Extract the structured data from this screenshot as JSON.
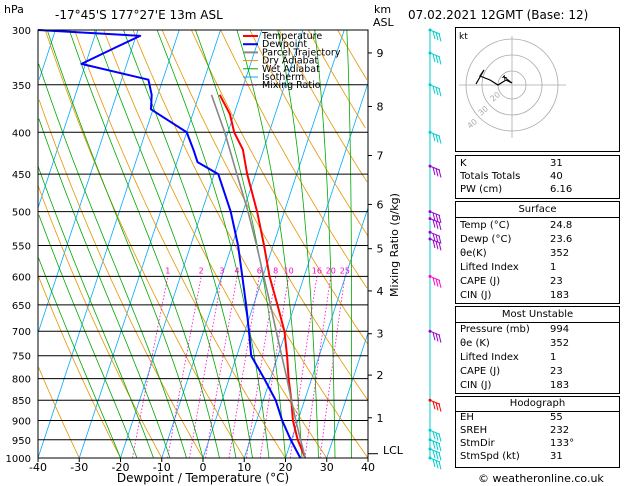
{
  "header": {
    "hpa_label": "hPa",
    "location": "-17°45'S  177°27'E  13m  ASL",
    "km_label": "km",
    "asl_label": "ASL",
    "datetime": "07.02.2021  12GMT  (Base: 12)"
  },
  "credit": "© weatheronline.co.uk",
  "colors": {
    "temperature": "#ff0000",
    "dewpoint": "#0000ff",
    "parcel": "#888888",
    "dry_adiabat": "#e69500",
    "wet_adiabat": "#00aa00",
    "isotherm": "#00aaff",
    "mixing_ratio": "#ff00cc",
    "wind": "#00cccc",
    "wind_purple": "#9900cc"
  },
  "chart_data": {
    "type": "line",
    "subtype": "skew-t log-p",
    "xlabel": "Dewpoint / Temperature (°C)",
    "ylabel_right": "Mixing Ratio (g/kg)",
    "xlim": [
      -40,
      40
    ],
    "ylim_hpa": [
      1000,
      300
    ],
    "x_ticks": [
      "-40",
      "-30",
      "-20",
      "-10",
      "0",
      "10",
      "20",
      "30",
      "40"
    ],
    "pressure_ticks": [
      "300",
      "350",
      "400",
      "450",
      "500",
      "550",
      "600",
      "650",
      "700",
      "750",
      "800",
      "850",
      "900",
      "950",
      "1000"
    ],
    "km_ticks": [
      {
        "label": "9",
        "p": 320
      },
      {
        "label": "8",
        "p": 372
      },
      {
        "label": "7",
        "p": 427
      },
      {
        "label": "6",
        "p": 490
      },
      {
        "label": "5",
        "p": 555
      },
      {
        "label": "4",
        "p": 625
      },
      {
        "label": "3",
        "p": 705
      },
      {
        "label": "2",
        "p": 792
      },
      {
        "label": "1",
        "p": 893
      }
    ],
    "lcl_label": "LCL",
    "lcl_p": 988,
    "mixing_ratio_labels": [
      "1",
      "2",
      "3",
      "4",
      "6",
      "8",
      "10",
      "16",
      "20",
      "25"
    ],
    "mixing_ratio_values": [
      1,
      2,
      3,
      4,
      6,
      8,
      10,
      16,
      20,
      25
    ],
    "legend": [
      "Temperature",
      "Dewpoint",
      "Parcel Trajectory",
      "Dry Adiabat",
      "Wet Adiabat",
      "Isotherm",
      "Mixing Ratio"
    ],
    "series": [
      {
        "name": "Temperature",
        "points": [
          [
            1000,
            24.8
          ],
          [
            950,
            21.5
          ],
          [
            900,
            18.8
          ],
          [
            850,
            16.8
          ],
          [
            800,
            14.4
          ],
          [
            750,
            12.2
          ],
          [
            700,
            9.6
          ],
          [
            650,
            5.8
          ],
          [
            600,
            1.6
          ],
          [
            550,
            -2.2
          ],
          [
            500,
            -6.6
          ],
          [
            450,
            -12.0
          ],
          [
            420,
            -15.0
          ],
          [
            400,
            -18.5
          ],
          [
            380,
            -21.0
          ],
          [
            360,
            -25.0
          ]
        ]
      },
      {
        "name": "Dewpoint",
        "points": [
          [
            1000,
            23.6
          ],
          [
            950,
            19.8
          ],
          [
            900,
            16.2
          ],
          [
            850,
            13.0
          ],
          [
            800,
            8.5
          ],
          [
            750,
            3.5
          ],
          [
            700,
            1.0
          ],
          [
            650,
            -1.8
          ],
          [
            600,
            -5.0
          ],
          [
            550,
            -8.5
          ],
          [
            500,
            -13.0
          ],
          [
            450,
            -19.0
          ],
          [
            435,
            -25.0
          ],
          [
            420,
            -27.0
          ],
          [
            400,
            -30.0
          ],
          [
            375,
            -40.5
          ],
          [
            360,
            -41.5
          ],
          [
            345,
            -43.5
          ],
          [
            330,
            -61.0
          ],
          [
            315,
            -54.0
          ],
          [
            305,
            -49.0
          ],
          [
            300,
            -77.0
          ]
        ]
      },
      {
        "name": "Parcel Trajectory",
        "points": [
          [
            1000,
            24.8
          ],
          [
            950,
            22.2
          ],
          [
            900,
            19.5
          ],
          [
            850,
            16.8
          ],
          [
            800,
            14.0
          ],
          [
            750,
            10.9
          ],
          [
            700,
            7.6
          ],
          [
            650,
            4.1
          ],
          [
            600,
            0.2
          ],
          [
            550,
            -4.0
          ],
          [
            500,
            -8.8
          ],
          [
            450,
            -14.5
          ],
          [
            400,
            -20.8
          ],
          [
            360,
            -27.0
          ]
        ]
      }
    ],
    "wind_barbs_p": [
      1000,
      975,
      950,
      925,
      850,
      700,
      600,
      540,
      530,
      510,
      500,
      440,
      400,
      350,
      320,
      300
    ]
  },
  "indices": {
    "rows": [
      {
        "label": "K",
        "value": "31"
      },
      {
        "label": "Totals Totals",
        "value": "40"
      },
      {
        "label": "PW (cm)",
        "value": "6.16"
      }
    ]
  },
  "surface": {
    "title": "Surface",
    "rows": [
      {
        "label": "Temp (°C)",
        "value": "24.8"
      },
      {
        "label": "Dewp (°C)",
        "value": "23.6"
      },
      {
        "label": "θe(K)",
        "value": "352"
      },
      {
        "label": "Lifted Index",
        "value": "1"
      },
      {
        "label": "CAPE (J)",
        "value": "23"
      },
      {
        "label": "CIN (J)",
        "value": "183"
      }
    ]
  },
  "most_unstable": {
    "title": "Most Unstable",
    "rows": [
      {
        "label": "Pressure (mb)",
        "value": "994"
      },
      {
        "label": "θe (K)",
        "value": "352"
      },
      {
        "label": "Lifted Index",
        "value": "1"
      },
      {
        "label": "CAPE (J)",
        "value": "23"
      },
      {
        "label": "CIN (J)",
        "value": "183"
      }
    ]
  },
  "hodograph": {
    "title": "Hodograph",
    "kt_label": "kt",
    "ring_labels": [
      "20",
      "30",
      "40"
    ],
    "rows": [
      {
        "label": "EH",
        "value": "55"
      },
      {
        "label": "SREH",
        "value": "232"
      },
      {
        "label": "StmDir",
        "value": "133°"
      },
      {
        "label": "StmSpd (kt)",
        "value": "31"
      }
    ]
  }
}
